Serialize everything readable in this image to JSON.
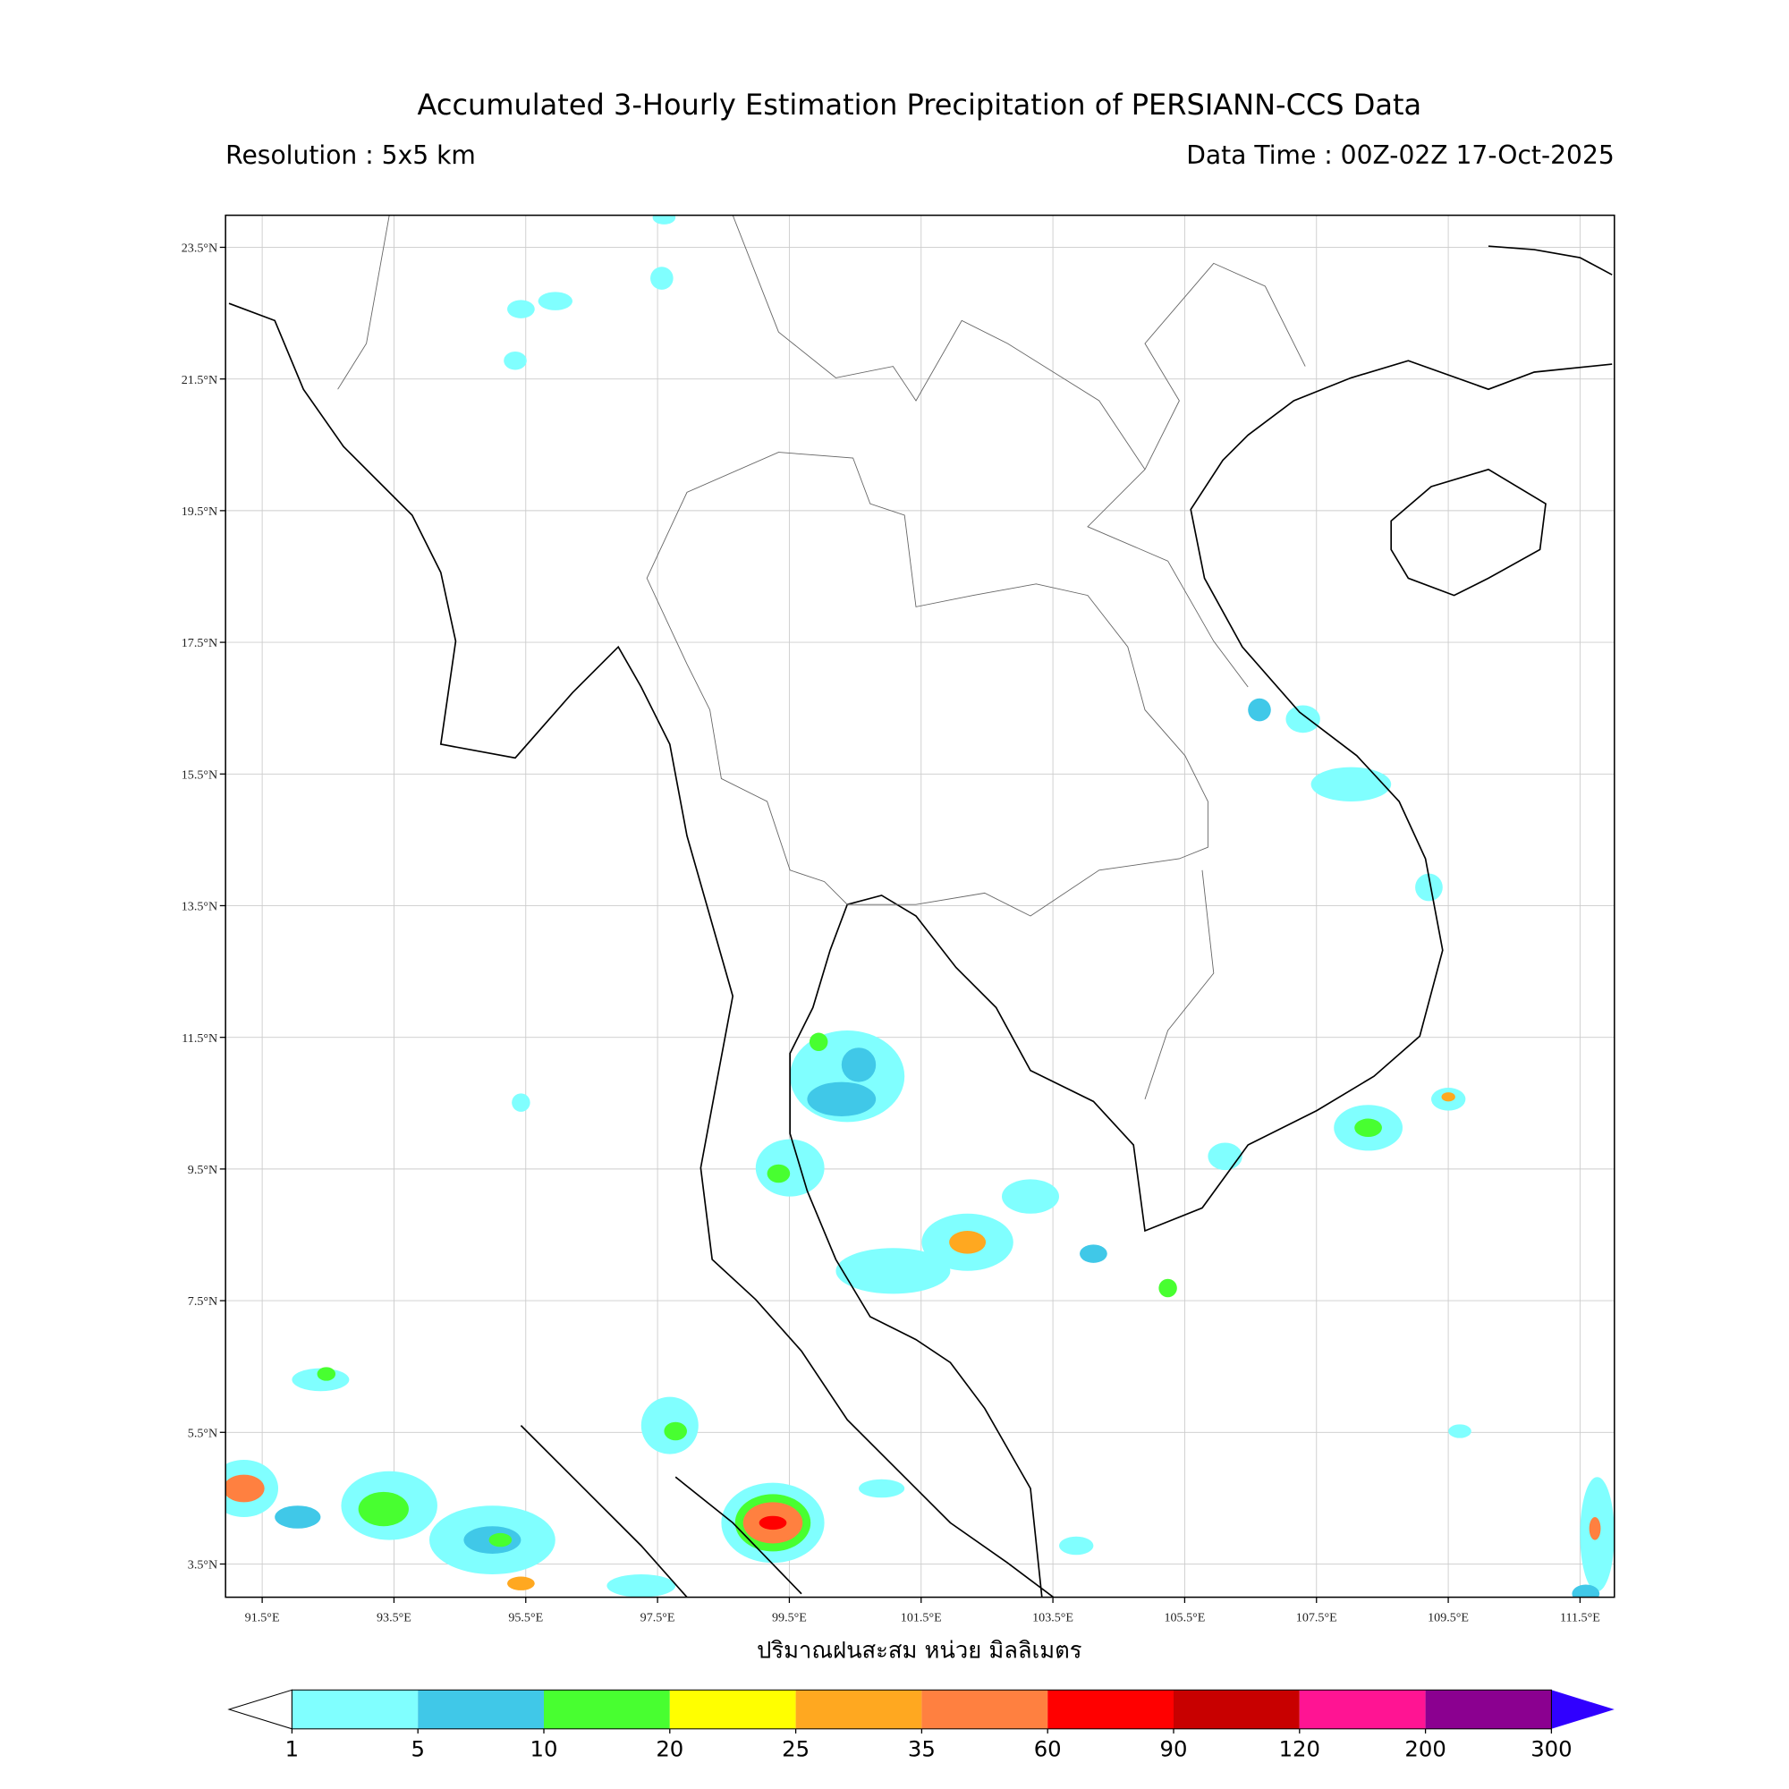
{
  "title": "Accumulated 3-Hourly Estimation Precipitation of PERSIANN-CCS Data",
  "resolution": "Resolution : 5x5 km",
  "data_time": "Data Time : 00Z-02Z 17-Oct-2025",
  "lon_ticks": [
    {
      "value": 91.5,
      "label": "91.5°E"
    },
    {
      "value": 93.5,
      "label": "93.5°E"
    },
    {
      "value": 95.5,
      "label": "95.5°E"
    },
    {
      "value": 97.5,
      "label": "97.5°E"
    },
    {
      "value": 99.5,
      "label": "99.5°E"
    },
    {
      "value": 101.5,
      "label": "101.5°E"
    },
    {
      "value": 103.5,
      "label": "103.5°E"
    },
    {
      "value": 105.5,
      "label": "105.5°E"
    },
    {
      "value": 107.5,
      "label": "107.5°E"
    },
    {
      "value": 109.5,
      "label": "109.5°E"
    },
    {
      "value": 111.5,
      "label": "111.5°E"
    }
  ],
  "lat_ticks": [
    {
      "value": 23.5,
      "label": "23.5°N"
    },
    {
      "value": 21.5,
      "label": "21.5°N"
    },
    {
      "value": 19.5,
      "label": "19.5°N"
    },
    {
      "value": 17.5,
      "label": "17.5°N"
    },
    {
      "value": 15.5,
      "label": "15.5°N"
    },
    {
      "value": 13.5,
      "label": "13.5°N"
    },
    {
      "value": 11.5,
      "label": "11.5°N"
    },
    {
      "value": 9.5,
      "label": "9.5°N"
    },
    {
      "value": 7.5,
      "label": "7.5°N"
    },
    {
      "value": 5.5,
      "label": "5.5°N"
    },
    {
      "value": 3.5,
      "label": "3.5°N"
    }
  ],
  "axis_label": "ปริมาณฝนสะสม หน่วย มิลลิเมตร",
  "colorbar": {
    "levels": [
      1,
      5,
      10,
      20,
      25,
      35,
      60,
      90,
      120,
      200,
      300
    ],
    "colors": [
      "#80ffff",
      "#40c8e8",
      "#48ff30",
      "#ffff00",
      "#ffa820",
      "#ff8040",
      "#ff0000",
      "#c80000",
      "#ff1493",
      "#8b0090"
    ],
    "under_color": "#ffffff",
    "over_color": "#3000ff"
  }
}
